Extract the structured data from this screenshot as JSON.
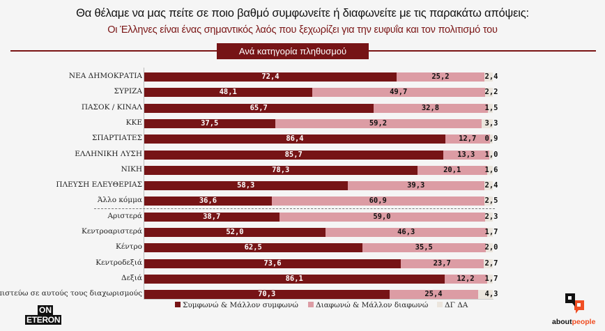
{
  "header": {
    "title": "Θα θέλαμε να μας πείτε σε ποιο βαθμό συμφωνείτε ή διαφωνείτε με τις παρακάτω απόψεις:",
    "subtitle": "Οι Έλληνες είναι ένας σημαντικός λαός που ξεχωρίζει για την ευφυΐα και τον πολιτισμό του",
    "badge": "Ανά κατηγορία πληθυσμού"
  },
  "colors": {
    "agree": "#761416",
    "disagree": "#dc9ca4",
    "dkna": "#ebe5dd",
    "accent": "#7a1515"
  },
  "chart_data": {
    "type": "bar",
    "orientation": "horizontal",
    "stacked": true,
    "title": "Οι Έλληνες είναι ένας σημαντικός λαός που ξεχωρίζει για την ευφυΐα και τον πολιτισμό του",
    "xlim": [
      0,
      100
    ],
    "legend_position": "bottom",
    "categories": [
      "ΝΕΑ ΔΗΜΟΚΡΑΤΙΑ",
      "ΣΥΡΙΖΑ",
      "ΠΑΣΟΚ / ΚΙΝΑΛ",
      "ΚΚΕ",
      "ΣΠΑΡΤΙΑΤΕΣ",
      "ΕΛΛΗΝΙΚΗ ΛΥΣΗ",
      "ΝΙΚΗ",
      "ΠΛΕΥΣΗ ΕΛΕΥΘΕΡΙΑΣ",
      "Άλλο κόμμα",
      "Αριστερά",
      "Κεντροαριστερά",
      "Κέντρο",
      "Κεντροδεξιά",
      "Δεξιά",
      "Δεν πιστεύω σε αυτούς τους διαχωρισμούς"
    ],
    "group_separator_after": 8,
    "series": [
      {
        "name": "Συμφωνώ & Μάλλον συμφωνώ",
        "values": [
          72.4,
          48.1,
          65.7,
          37.5,
          86.4,
          85.7,
          78.3,
          58.3,
          36.6,
          38.7,
          52.0,
          62.5,
          73.6,
          86.1,
          70.3
        ],
        "labels": [
          "72,4",
          "48,1",
          "65,7",
          "37,5",
          "86,4",
          "85,7",
          "78,3",
          "58,3",
          "36,6",
          "38,7",
          "52,0",
          "62,5",
          "73,6",
          "86,1",
          "70,3"
        ]
      },
      {
        "name": "Διαφωνώ & Μάλλον διαφωνώ",
        "values": [
          25.2,
          49.7,
          32.8,
          59.2,
          12.7,
          13.3,
          20.1,
          39.3,
          60.9,
          59.0,
          46.3,
          35.5,
          23.7,
          12.2,
          25.4
        ],
        "labels": [
          "25,2",
          "49,7",
          "32,8",
          "59,2",
          "12,7",
          "13,3",
          "20,1",
          "39,3",
          "60,9",
          "59,0",
          "46,3",
          "35,5",
          "23,7",
          "12,2",
          "25,4"
        ]
      },
      {
        "name": "ΔΓ ΔΑ",
        "values": [
          2.4,
          2.2,
          1.5,
          3.3,
          0.9,
          1.0,
          1.6,
          2.4,
          2.5,
          2.3,
          1.7,
          2.0,
          2.7,
          1.7,
          4.3
        ],
        "labels": [
          "2,4",
          "2,2",
          "1,5",
          "3,3",
          "0,9",
          "1,0",
          "1,6",
          "2,4",
          "2,5",
          "2,3",
          "1,7",
          "2,0",
          "2,7",
          "1,7",
          "4,3"
        ]
      }
    ]
  },
  "logos": {
    "left_top": "ON",
    "left_bottom": "ETERON",
    "right_a": "about",
    "right_b": "people"
  }
}
